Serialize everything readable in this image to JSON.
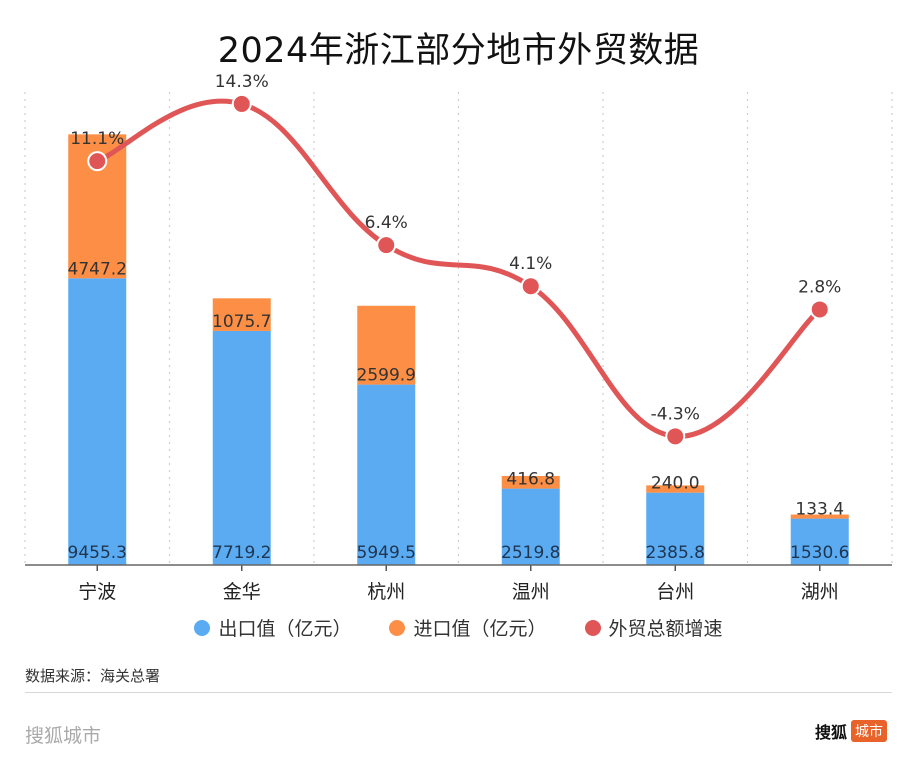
{
  "title": "2024年浙江部分地市外贸数据",
  "chart_data": {
    "type": "bar",
    "subtype": "stacked-bar-with-line",
    "title": "2024年浙江部分地市外贸数据",
    "categories": [
      "宁波",
      "金华",
      "杭州",
      "温州",
      "台州",
      "湖州"
    ],
    "series": [
      {
        "name": "出口值（亿元）",
        "type": "bar",
        "stack": "total",
        "color": "#5aabf2",
        "values": [
          9455.3,
          7719.2,
          5949.5,
          2519.8,
          2385.8,
          1530.6
        ],
        "labels": [
          "9455.3",
          "7719.2",
          "5949.5",
          "2519.8",
          "2385.8",
          "1530.6"
        ]
      },
      {
        "name": "进口值（亿元）",
        "type": "bar",
        "stack": "total",
        "color": "#fc8f45",
        "values": [
          4747.2,
          1075.7,
          2599.9,
          416.8,
          240.0,
          133.4
        ],
        "labels": [
          "4747.2",
          "1075.7",
          "2599.9",
          "416.8",
          "240.0",
          "133.4"
        ]
      },
      {
        "name": "外贸总额增速",
        "type": "line",
        "color": "#e05555",
        "values": [
          11.1,
          14.3,
          6.4,
          4.1,
          -4.3,
          2.8
        ],
        "labels": [
          "11.1%",
          "14.3%",
          "6.4%",
          "4.1%",
          "-4.3%",
          "2.8%"
        ]
      }
    ],
    "xlabel": "",
    "ylabel": "",
    "ylim": [
      0,
      15500
    ],
    "y2lim": [
      -11.5,
      14.8
    ],
    "grid": "vertical-dotted",
    "legend_position": "bottom"
  },
  "legend": [
    {
      "label": "出口值（亿元）",
      "color": "#5aabf2"
    },
    {
      "label": "进口值（亿元）",
      "color": "#fc8f45"
    },
    {
      "label": "外贸总额增速",
      "color": "#e05555"
    }
  ],
  "footer": {
    "source": "数据来源：海关总署",
    "brand_left": "搜狐城市",
    "brand_right_text": "搜狐",
    "brand_right_badge": "城市"
  }
}
